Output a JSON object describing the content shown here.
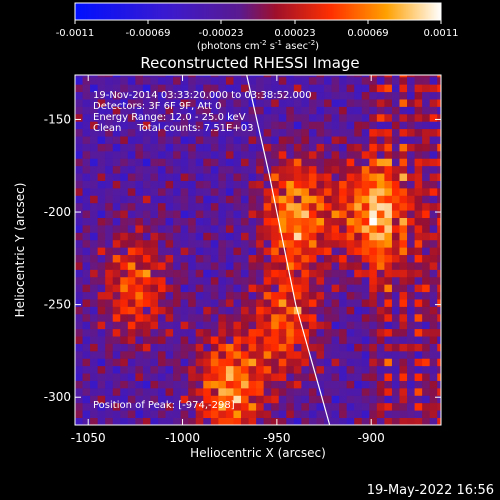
{
  "colorbar": {
    "tick_labels": [
      "-0.0011",
      "-0.00069",
      "-0.00023",
      "0.00023",
      "0.00069",
      "0.0011"
    ],
    "range": [
      -0.0011,
      0.0011
    ],
    "unit_label": "(photons cm",
    "unit_exp1": "-2",
    "unit_mid": " s",
    "unit_exp2": "-1",
    "unit_mid2": " asec",
    "unit_exp3": "-2",
    "unit_end": ")"
  },
  "annotations": {
    "line1": "19-Nov-2014 03:33:20.000 to 03:38:52.000",
    "line2": "Detectors: 3F 6F 9F, Att 0",
    "line3": "Energy Range: 12.0 - 25.0 keV",
    "line4": "Clean     Total counts: 7.51E+03",
    "peak": "Position of Peak: [-974,-298]"
  },
  "footer": {
    "timestamp": "19-May-2022 16:56"
  },
  "colors": {
    "background": "#000000",
    "limb": "#ffffff",
    "text": "#ffffff"
  },
  "chart_data": {
    "type": "heatmap",
    "title": "Reconstructed RHESSI Image",
    "xlabel": "Heliocentric X (arcsec)",
    "ylabel": "Heliocentric Y (arcsec)",
    "xlim": [
      -1057,
      -863
    ],
    "ylim": [
      -315,
      -126
    ],
    "x_ticks": [
      -1050,
      -1000,
      -950,
      -900
    ],
    "y_ticks": [
      -300,
      -250,
      -200,
      -150
    ],
    "colormap": "blue-purple-red-orange-yellow-white",
    "limb_points": [
      [
        -966,
        -126
      ],
      [
        -954,
        -180
      ],
      [
        -940,
        -250
      ],
      [
        -922,
        -315
      ]
    ],
    "bright_regions": [
      {
        "x": -900,
        "y": -200,
        "level": "high"
      },
      {
        "x": -940,
        "y": -200,
        "level": "high"
      },
      {
        "x": -945,
        "y": -260,
        "level": "medium"
      },
      {
        "x": -975,
        "y": -295,
        "level": "high"
      },
      {
        "x": -1025,
        "y": -240,
        "level": "medium"
      }
    ]
  }
}
